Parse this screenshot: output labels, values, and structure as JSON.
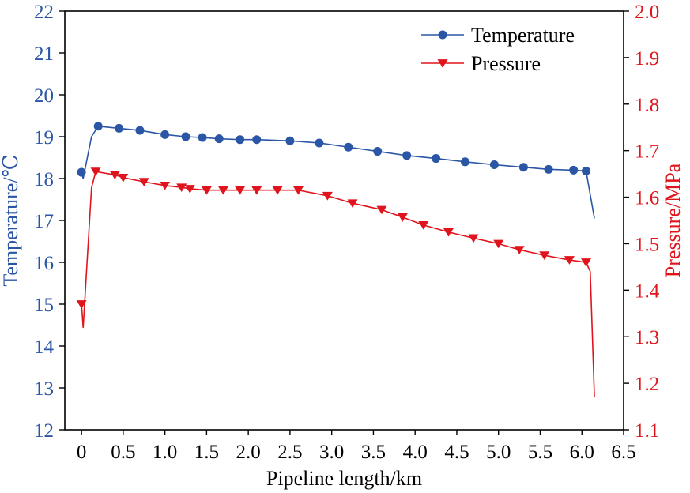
{
  "chart_data": {
    "type": "line",
    "title": "",
    "xlabel": "Pipeline length/km",
    "ylabel_left": "Temperature/℃",
    "ylabel_right": "Pressure/MPa",
    "xlim": [
      -0.2,
      6.5
    ],
    "ylim_left": [
      12,
      22
    ],
    "ylim_right": [
      1.1,
      2.0
    ],
    "x_ticks": [
      0,
      0.5,
      1.0,
      1.5,
      2.0,
      2.5,
      3.0,
      3.5,
      4.0,
      4.5,
      5.0,
      5.5,
      6.0,
      6.5
    ],
    "x_tick_labels": [
      "0",
      "0.5",
      "1.0",
      "1.5",
      "2.0",
      "2.5",
      "3.0",
      "3.5",
      "4.0",
      "4.5",
      "5.0",
      "5.5",
      "6.0",
      "6.5"
    ],
    "y_left_ticks": [
      12,
      13,
      14,
      15,
      16,
      17,
      18,
      19,
      20,
      21,
      22
    ],
    "y_left_tick_labels": [
      "12",
      "13",
      "14",
      "15",
      "16",
      "17",
      "18",
      "19",
      "20",
      "21",
      "22"
    ],
    "y_right_ticks": [
      1.1,
      1.2,
      1.3,
      1.4,
      1.5,
      1.6,
      1.7,
      1.8,
      1.9,
      2.0
    ],
    "y_right_tick_labels": [
      "1.1",
      "1.2",
      "1.3",
      "1.4",
      "1.5",
      "1.6",
      "1.7",
      "1.8",
      "1.9",
      "2.0"
    ],
    "legend_position": "top-right",
    "colors": {
      "temperature": "#2a56a5",
      "pressure": "#e0141c",
      "axis_left": "#2a56a5",
      "axis_right": "#e0141c",
      "axis": "#000000"
    },
    "series": [
      {
        "name": "Temperature",
        "axis": "left",
        "marker": "circle",
        "line_x": [
          0.0,
          0.02,
          0.12,
          0.2,
          0.45,
          0.7,
          1.0,
          1.25,
          1.45,
          1.65,
          1.9,
          2.1,
          2.5,
          2.85,
          3.2,
          3.55,
          3.9,
          4.25,
          4.6,
          4.95,
          5.3,
          5.6,
          5.9,
          6.05,
          6.15
        ],
        "line_y": [
          18.15,
          18.0,
          19.0,
          19.25,
          19.2,
          19.15,
          19.05,
          19.0,
          18.98,
          18.95,
          18.93,
          18.93,
          18.9,
          18.85,
          18.75,
          18.65,
          18.55,
          18.48,
          18.4,
          18.33,
          18.27,
          18.22,
          18.2,
          18.18,
          17.05
        ],
        "marker_x": [
          0.0,
          0.2,
          0.45,
          0.7,
          1.0,
          1.25,
          1.45,
          1.65,
          1.9,
          2.1,
          2.5,
          2.85,
          3.2,
          3.55,
          3.9,
          4.25,
          4.6,
          4.95,
          5.3,
          5.6,
          5.9,
          6.05
        ],
        "marker_y": [
          18.15,
          19.25,
          19.2,
          19.15,
          19.05,
          19.0,
          18.98,
          18.95,
          18.93,
          18.93,
          18.9,
          18.85,
          18.75,
          18.65,
          18.55,
          18.48,
          18.4,
          18.33,
          18.27,
          18.22,
          18.2,
          18.18
        ]
      },
      {
        "name": "Pressure",
        "axis": "right",
        "marker": "triangle-down",
        "line_x": [
          0.0,
          0.02,
          0.12,
          0.17,
          0.4,
          0.5,
          0.75,
          1.0,
          1.2,
          1.3,
          1.5,
          1.7,
          1.9,
          2.1,
          2.35,
          2.6,
          2.95,
          3.25,
          3.6,
          3.85,
          4.1,
          4.4,
          4.7,
          5.0,
          5.25,
          5.55,
          5.85,
          6.05,
          6.1,
          6.15
        ],
        "line_y": [
          1.37,
          1.32,
          1.62,
          1.655,
          1.648,
          1.642,
          1.633,
          1.625,
          1.621,
          1.618,
          1.615,
          1.615,
          1.615,
          1.615,
          1.615,
          1.615,
          1.603,
          1.587,
          1.573,
          1.557,
          1.54,
          1.525,
          1.512,
          1.5,
          1.487,
          1.475,
          1.465,
          1.46,
          1.44,
          1.17
        ],
        "marker_x": [
          0.0,
          0.17,
          0.4,
          0.5,
          0.75,
          1.0,
          1.2,
          1.3,
          1.5,
          1.7,
          1.9,
          2.1,
          2.35,
          2.6,
          2.95,
          3.25,
          3.6,
          3.85,
          4.1,
          4.4,
          4.7,
          5.0,
          5.25,
          5.55,
          5.85,
          6.05
        ],
        "marker_y": [
          1.37,
          1.655,
          1.648,
          1.642,
          1.633,
          1.625,
          1.621,
          1.618,
          1.615,
          1.615,
          1.615,
          1.615,
          1.615,
          1.615,
          1.603,
          1.587,
          1.573,
          1.557,
          1.54,
          1.525,
          1.512,
          1.5,
          1.487,
          1.475,
          1.465,
          1.46
        ]
      }
    ]
  }
}
